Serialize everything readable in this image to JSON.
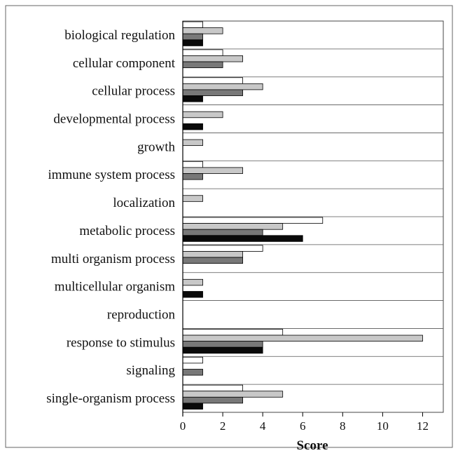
{
  "chart_data": {
    "type": "bar",
    "orientation": "horizontal",
    "xlabel": "Score",
    "xlim": [
      0,
      13
    ],
    "xticks": [
      0,
      2,
      4,
      6,
      8,
      10,
      12
    ],
    "grid": "horizontal separators between categories",
    "legend": "none",
    "categories": [
      "biological regulation",
      "cellular component",
      "cellular process",
      "developmental process",
      "growth",
      "immune system process",
      "localization",
      "metabolic process",
      "multi organism process",
      "multicellular organism",
      "reproduction",
      "response to stimulus",
      "signaling",
      "single-organism process"
    ],
    "series": [
      {
        "color": "#ffffff",
        "values": [
          1,
          2,
          3,
          0,
          0,
          1,
          0,
          7,
          4,
          0,
          0,
          5,
          1,
          3
        ]
      },
      {
        "color": "#c8c8c8",
        "values": [
          2,
          3,
          4,
          2,
          1,
          3,
          1,
          5,
          3,
          1,
          0,
          12,
          0,
          5
        ]
      },
      {
        "color": "#787878",
        "values": [
          1,
          2,
          3,
          0,
          0,
          1,
          0,
          4,
          3,
          0,
          0,
          4,
          1,
          3
        ]
      },
      {
        "color": "#0a0a0a",
        "values": [
          1,
          0,
          1,
          1,
          0,
          0,
          0,
          6,
          0,
          1,
          0,
          4,
          0,
          1
        ]
      }
    ]
  }
}
